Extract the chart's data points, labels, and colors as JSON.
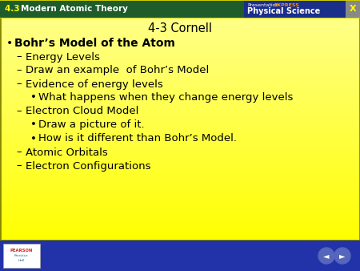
{
  "header_left": "4.3 Modern Atomic Theory",
  "header_right_top_normal": "Presentation",
  "header_right_top_bold": "EXPRESS",
  "header_right_bottom": "Physical Science",
  "title": "4-3 Cornell",
  "bullet_main": "Bohr’s Model of the Atom",
  "items": [
    {
      "level": 1,
      "text": "Energy Levels"
    },
    {
      "level": 1,
      "text": "Draw an example  of Bohr’s Model"
    },
    {
      "level": 1,
      "text": "Evidence of energy levels"
    },
    {
      "level": 2,
      "text": "What happens when they change energy levels"
    },
    {
      "level": 1,
      "text": "Electron Cloud Model"
    },
    {
      "level": 2,
      "text": "Draw a picture of it."
    },
    {
      "level": 2,
      "text": "How is it different than Bohr’s Model."
    },
    {
      "level": 1,
      "text": "Atomic Orbitals"
    },
    {
      "level": 1,
      "text": "Electron Configurations"
    }
  ],
  "header_bg": "#1e5c2a",
  "header_right_bg": "#1a2e8a",
  "footer_bg": "#2233aa",
  "header_text_color": "#ffff00",
  "body_text_color": "#000000",
  "express_color": "#ff8800",
  "x_color": "#ffff00",
  "border_color": "#888800",
  "slide_bg_color_top": "#fffff5",
  "slide_bg_color_bottom": "#ffff88"
}
